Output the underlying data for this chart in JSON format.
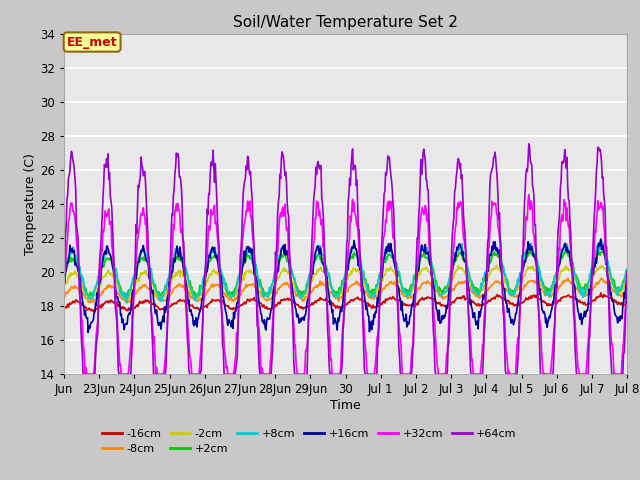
{
  "title": "Soil/Water Temperature Set 2",
  "xlabel": "Time",
  "ylabel": "Temperature (C)",
  "ylim": [
    14,
    34
  ],
  "plot_bg_color": "#e8e8e8",
  "fig_bg_color": "#c8c8c8",
  "annotation_text": "EE_met",
  "annotation_bg": "#ffff99",
  "annotation_border": "#8b6914",
  "series": {
    "-16cm": {
      "color": "#cc0000",
      "lw": 1.2
    },
    "-8cm": {
      "color": "#ff8800",
      "lw": 1.2
    },
    "-2cm": {
      "color": "#cccc00",
      "lw": 1.2
    },
    "+2cm": {
      "color": "#00cc00",
      "lw": 1.2
    },
    "+8cm": {
      "color": "#00cccc",
      "lw": 1.2
    },
    "+16cm": {
      "color": "#000099",
      "lw": 1.2
    },
    "+32cm": {
      "color": "#ff00ff",
      "lw": 1.2
    },
    "+64cm": {
      "color": "#9900cc",
      "lw": 1.2
    }
  },
  "xtick_labels": [
    "Jun",
    "23Jun",
    "24Jun",
    "25Jun",
    "26Jun",
    "27Jun",
    "28Jun",
    "29Jun",
    "30",
    "Jul 1",
    "Jul 2",
    "Jul 3",
    "Jul 4",
    "Jul 5",
    "Jul 6",
    "Jul 7",
    "Jul 8"
  ],
  "ytick_vals": [
    14,
    16,
    18,
    20,
    22,
    24,
    26,
    28,
    30,
    32,
    34
  ],
  "n_days": 16,
  "points_per_day": 48,
  "base_temp": 18.5,
  "trend_per_day": 0.025
}
